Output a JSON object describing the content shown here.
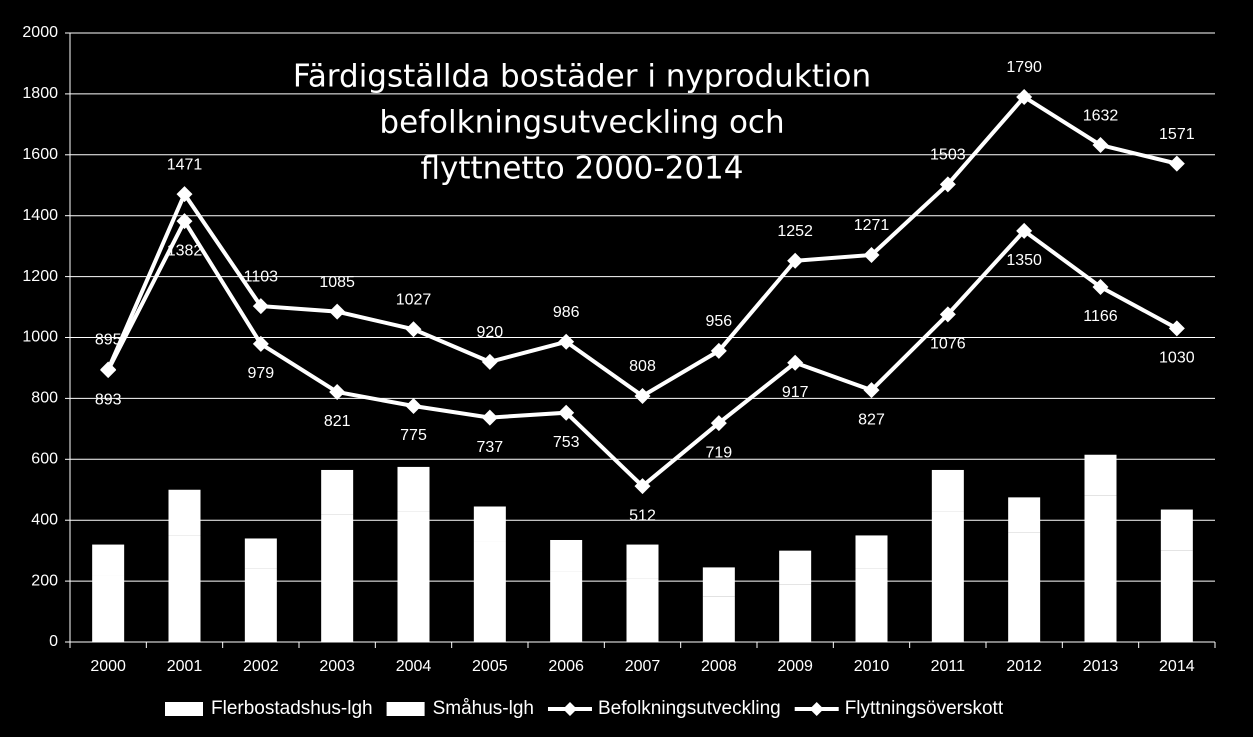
{
  "chart_data": {
    "type": "bar-line",
    "title": [
      "Färdigställda bostäder i nyproduktion",
      "befolkningsutveckling och",
      "flyttnetto 2000-2014"
    ],
    "categories": [
      "2000",
      "2001",
      "2002",
      "2003",
      "2004",
      "2005",
      "2006",
      "2007",
      "2008",
      "2009",
      "2010",
      "2011",
      "2012",
      "2013",
      "2014"
    ],
    "ylim": [
      0,
      2000
    ],
    "yticks": [
      0,
      200,
      400,
      600,
      800,
      1000,
      1200,
      1400,
      1600,
      1800,
      2000
    ],
    "grid": true,
    "series": [
      {
        "name": "Flerbostadshus-lgh",
        "kind": "bar",
        "color": "#ffffff",
        "values": [
          220,
          350,
          240,
          420,
          430,
          330,
          230,
          210,
          150,
          190,
          240,
          430,
          360,
          480,
          300
        ]
      },
      {
        "name": "Småhus-lgh",
        "kind": "bar",
        "color": "#ffffff",
        "values": [
          100,
          150,
          100,
          145,
          145,
          115,
          105,
          110,
          95,
          110,
          110,
          135,
          115,
          135,
          135
        ]
      },
      {
        "name": "Befolkningsutveckling",
        "kind": "line",
        "color": "#ffffff",
        "label_pos": "above",
        "values": [
          895,
          1471,
          1103,
          1085,
          1027,
          920,
          986,
          808,
          956,
          1252,
          1271,
          1503,
          1790,
          1632,
          1571
        ]
      },
      {
        "name": "Flyttningsöverskott",
        "kind": "line",
        "color": "#ffffff",
        "label_pos": "below",
        "values": [
          893,
          1382,
          979,
          821,
          775,
          737,
          753,
          512,
          719,
          917,
          827,
          1076,
          1350,
          1166,
          1030
        ]
      }
    ]
  }
}
